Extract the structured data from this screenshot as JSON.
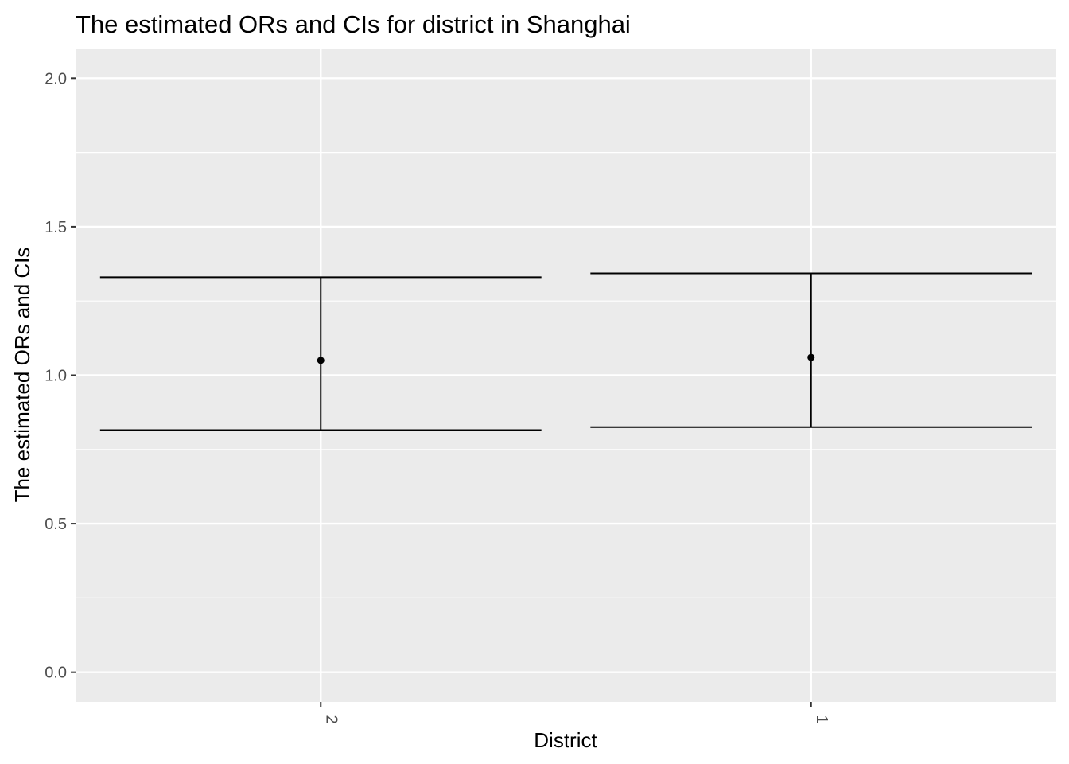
{
  "chart_data": {
    "type": "errorbar",
    "title": "The estimated ORs and CIs for district in Shanghai",
    "xlabel": "District",
    "ylabel": "The estimated ORs and CIs",
    "categories": [
      "2",
      "1"
    ],
    "series": [
      {
        "estimate": [
          1.05,
          1.06
        ],
        "lower": [
          0.815,
          0.825
        ],
        "upper": [
          1.33,
          1.343
        ]
      }
    ],
    "ylim": [
      -0.1,
      2.1
    ],
    "yticks": [
      0.0,
      0.5,
      1.0,
      1.5,
      2.0
    ],
    "ytick_labels": [
      "0.0",
      "0.5",
      "1.0",
      "1.5",
      "2.0"
    ],
    "grid": true,
    "legend": "none",
    "colors": {
      "panel": "#ebebeb",
      "grid": "#ffffff",
      "marks": "#000000",
      "tick_text": "#4d4d4d",
      "tick_mark": "#333333"
    }
  }
}
